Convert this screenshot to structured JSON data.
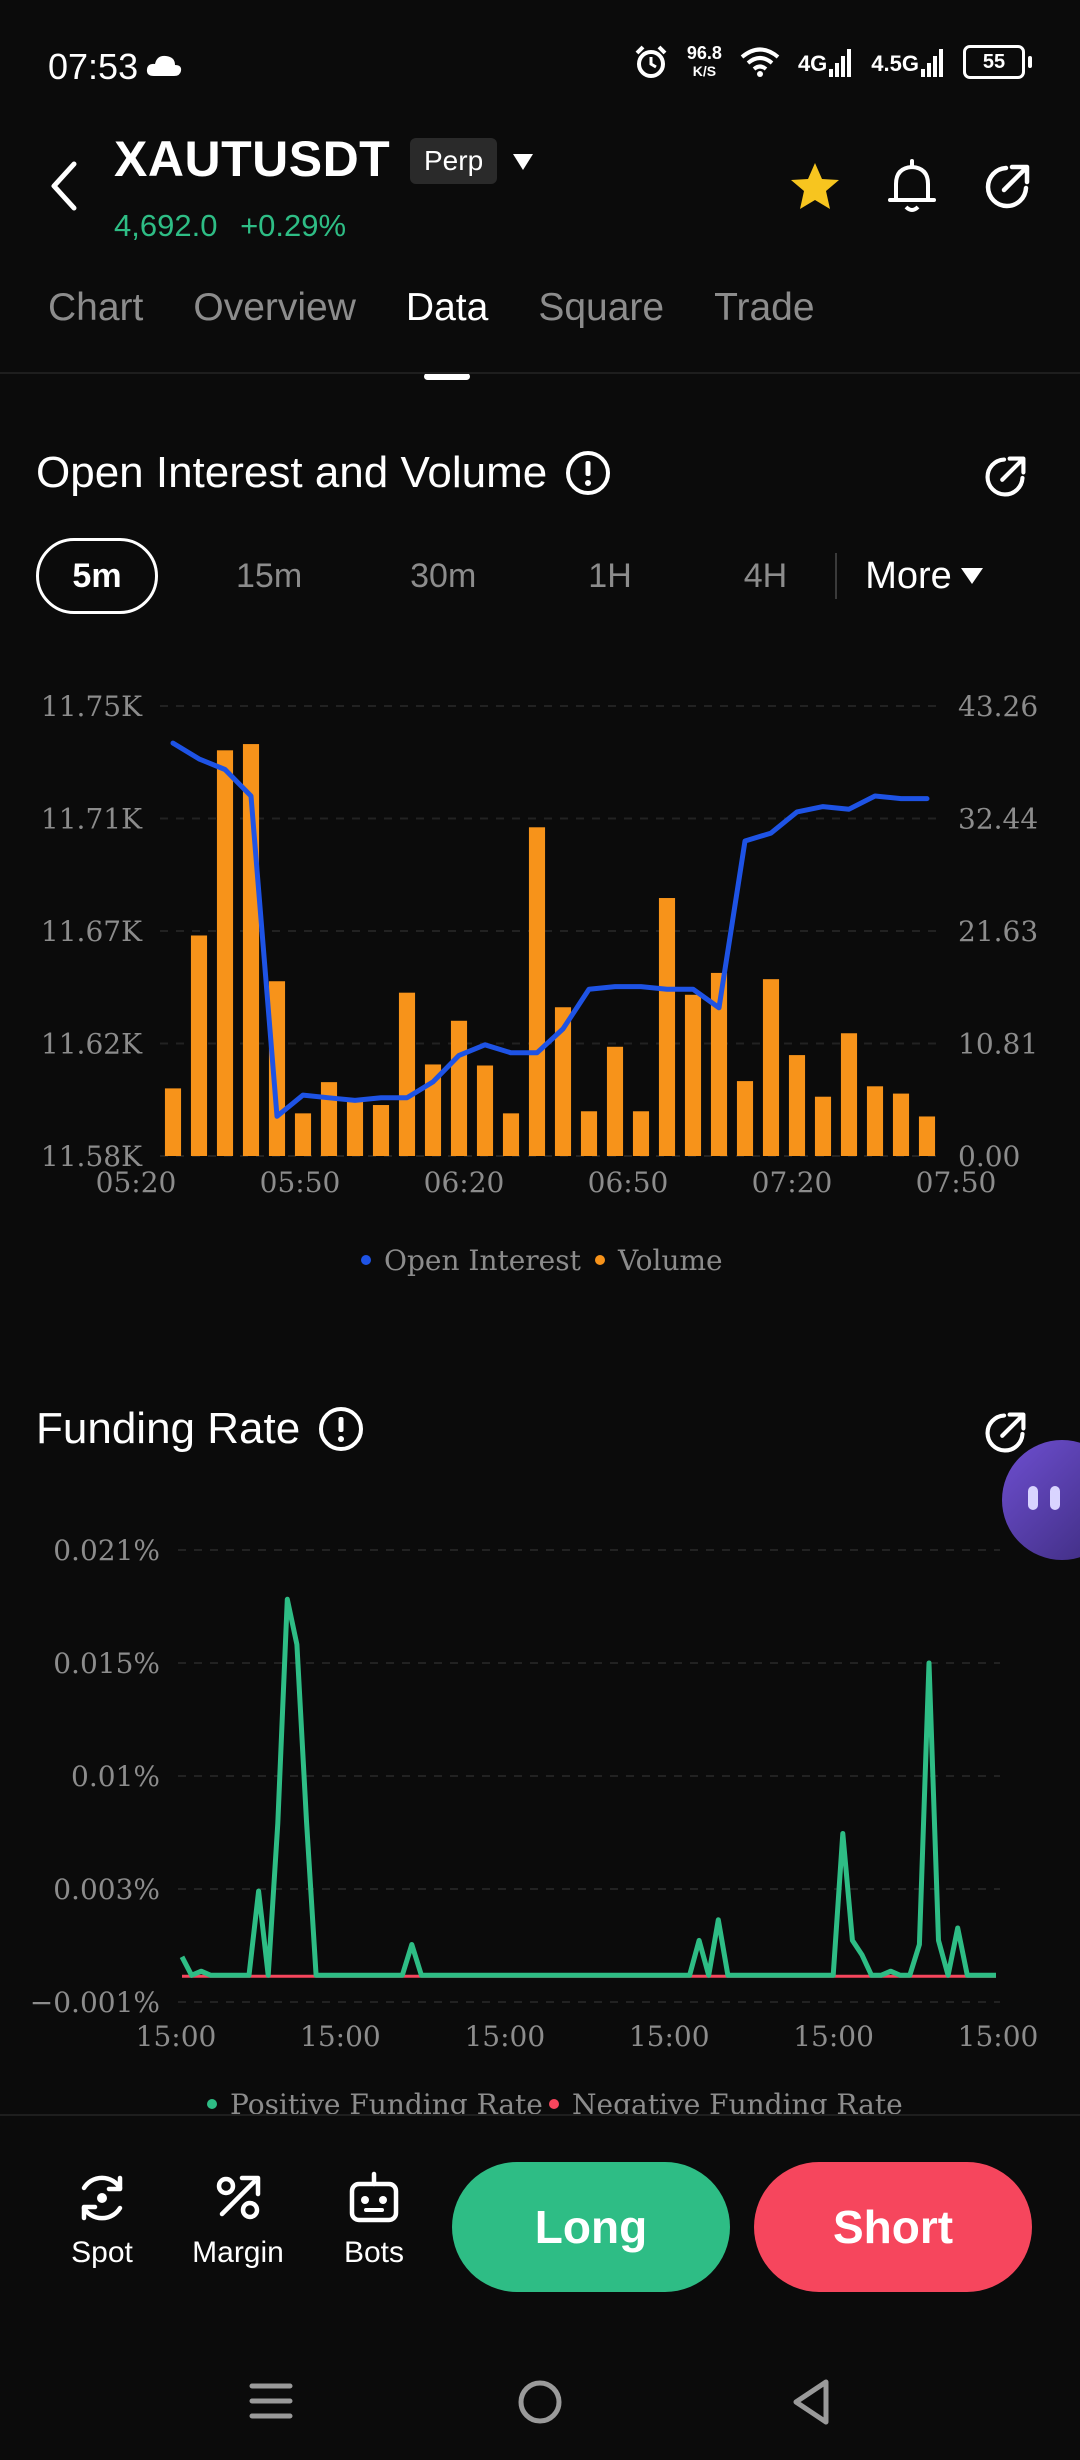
{
  "status_bar": {
    "time": "07:53",
    "net_speed_value": "96.8",
    "net_speed_unit": "K/S",
    "net_1": "4G",
    "net_2": "4.5G",
    "battery": "55"
  },
  "header": {
    "symbol": "XAUTUSDT",
    "badge": "Perp",
    "price": "4,692.0",
    "change": "+0.29%"
  },
  "tabs": [
    "Chart",
    "Overview",
    "Data",
    "Square",
    "Trade"
  ],
  "open_interest_section": {
    "title": "Open Interest and Volume",
    "intervals": [
      "5m",
      "15m",
      "30m",
      "1H",
      "4H"
    ],
    "more_label": "More"
  },
  "funding_section": {
    "title": "Funding Rate"
  },
  "chart_data": [
    {
      "type": "bar+line",
      "title": "Open Interest and Volume",
      "x_tick_labels": [
        "05:20",
        "05:50",
        "06:20",
        "06:50",
        "07:20",
        "07:50"
      ],
      "left_axis_labels": [
        "11.75K",
        "11.71K",
        "11.67K",
        "11.62K",
        "11.58K"
      ],
      "right_axis_labels": [
        "43.26",
        "32.44",
        "21.63",
        "10.81",
        "0.00"
      ],
      "left_ylim": [
        11580,
        11750
      ],
      "right_ylim": [
        0,
        43.26
      ],
      "legend": [
        "Open Interest",
        "Volume"
      ],
      "series": [
        {
          "name": "Volume",
          "kind": "bar",
          "color": "#f7931a",
          "values": [
            6.5,
            21.2,
            39.0,
            39.6,
            16.8,
            4.1,
            7.1,
            5.4,
            4.9,
            15.7,
            8.8,
            13.0,
            8.7,
            4.1,
            31.6,
            14.3,
            4.3,
            10.5,
            4.3,
            24.8,
            15.5,
            17.6,
            7.2,
            17.0,
            9.7,
            5.7,
            11.8,
            6.7,
            6.0,
            3.8
          ]
        },
        {
          "name": "Open Interest",
          "kind": "line",
          "color": "#1e53e5",
          "values": [
            11736,
            11730,
            11726,
            11716,
            11595,
            11603,
            11602,
            11601,
            11602,
            11602,
            11608,
            11618,
            11622,
            11619,
            11619,
            11628,
            11643,
            11644,
            11644,
            11643,
            11643,
            11636,
            11699,
            11702,
            11710,
            11712,
            11711,
            11716,
            11715,
            11715
          ]
        }
      ],
      "grid": true,
      "legend_position": "bottom"
    },
    {
      "type": "line",
      "title": "Funding Rate",
      "x_tick_labels": [
        "15:00",
        "15:00",
        "15:00",
        "15:00",
        "15:00",
        "15:00"
      ],
      "y_tick_labels": [
        "0.021%",
        "0.015%",
        "0.01%",
        "0.003%",
        "−0.001%"
      ],
      "ylim": [
        -0.001,
        0.021
      ],
      "legend": [
        "Positive Funding Rate",
        "Negative Funding Rate"
      ],
      "series": [
        {
          "name": "Positive Funding Rate",
          "color": "#2ebd85",
          "values": [
            0.0012,
            0.0003,
            0.0005,
            0.0003,
            0.0003,
            0.0003,
            0.0003,
            0.0003,
            0.0044,
            0.0003,
            0.0077,
            0.0186,
            0.0164,
            0.0078,
            0.0003,
            0.0003,
            0.0003,
            0.0003,
            0.0003,
            0.0003,
            0.0003,
            0.0003,
            0.0003,
            0.0003,
            0.0018,
            0.0003,
            0.0003,
            0.0003,
            0.0003,
            0.0003,
            0.0003,
            0.0003,
            0.0003,
            0.0003,
            0.0003,
            0.0003,
            0.0003,
            0.0003,
            0.0003,
            0.0003,
            0.0003,
            0.0003,
            0.0003,
            0.0003,
            0.0003,
            0.0003,
            0.0003,
            0.0003,
            0.0003,
            0.0003,
            0.0003,
            0.0003,
            0.0003,
            0.0003,
            0.002,
            0.0003,
            0.003,
            0.0003,
            0.0003,
            0.0003,
            0.0003,
            0.0003,
            0.0003,
            0.0003,
            0.0003,
            0.0003,
            0.0003,
            0.0003,
            0.0003,
            0.0072,
            0.002,
            0.0013,
            0.0003,
            0.0003,
            0.0005,
            0.0003,
            0.0003,
            0.0018,
            0.0155,
            0.002,
            0.0003,
            0.0026,
            0.0003,
            0.0003,
            0.0003,
            0.0003
          ],
          "negative_baseline_color": "#f6465d"
        }
      ],
      "grid": true,
      "legend_position": "bottom"
    }
  ],
  "bottom_bar": {
    "spot_label": "Spot",
    "margin_label": "Margin",
    "bots_label": "Bots",
    "long_label": "Long",
    "short_label": "Short"
  },
  "colors": {
    "positive": "#2ebd85",
    "negative": "#f6465d",
    "volume": "#f7931a",
    "open_interest": "#1e53e5",
    "star": "#f7c51f"
  }
}
